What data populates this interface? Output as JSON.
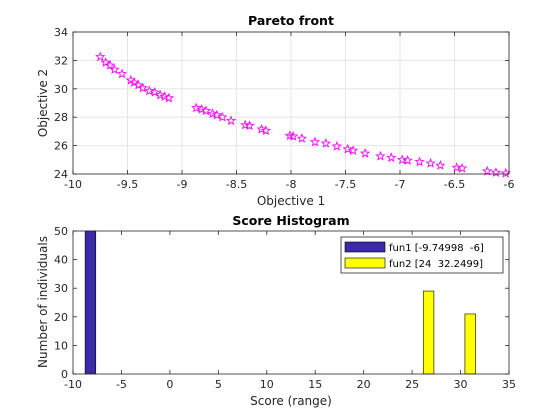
{
  "chart_data": [
    {
      "type": "scatter",
      "title": "Pareto front",
      "xlabel": "Objective 1",
      "ylabel": "Objective 2",
      "xlim": [
        -10,
        -6
      ],
      "ylim": [
        24,
        34
      ],
      "xticks": [
        "-10",
        "-9.5",
        "-9",
        "-8.5",
        "-8",
        "-7.5",
        "-7",
        "-6.5",
        "-6"
      ],
      "yticks": [
        "24",
        "26",
        "28",
        "30",
        "32",
        "34"
      ],
      "grid": true,
      "marker": "star",
      "color": "#ff00ff",
      "points": [
        [
          -9.75,
          32.25
        ],
        [
          -9.7,
          31.85
        ],
        [
          -9.66,
          31.65
        ],
        [
          -9.62,
          31.35
        ],
        [
          -9.55,
          31.05
        ],
        [
          -9.47,
          30.6
        ],
        [
          -9.44,
          30.45
        ],
        [
          -9.4,
          30.25
        ],
        [
          -9.36,
          30.05
        ],
        [
          -9.3,
          29.85
        ],
        [
          -9.25,
          29.75
        ],
        [
          -9.2,
          29.55
        ],
        [
          -9.16,
          29.45
        ],
        [
          -9.12,
          29.35
        ],
        [
          -8.87,
          28.65
        ],
        [
          -8.82,
          28.55
        ],
        [
          -8.78,
          28.45
        ],
        [
          -8.72,
          28.25
        ],
        [
          -8.68,
          28.15
        ],
        [
          -8.63,
          28.0
        ],
        [
          -8.55,
          27.75
        ],
        [
          -8.42,
          27.45
        ],
        [
          -8.38,
          27.4
        ],
        [
          -8.27,
          27.15
        ],
        [
          -8.23,
          27.05
        ],
        [
          -8.01,
          26.7
        ],
        [
          -7.98,
          26.65
        ],
        [
          -7.9,
          26.5
        ],
        [
          -7.78,
          26.25
        ],
        [
          -7.68,
          26.15
        ],
        [
          -7.58,
          25.95
        ],
        [
          -7.48,
          25.75
        ],
        [
          -7.43,
          25.65
        ],
        [
          -7.32,
          25.45
        ],
        [
          -7.18,
          25.25
        ],
        [
          -7.08,
          25.15
        ],
        [
          -6.98,
          25.0
        ],
        [
          -6.93,
          24.95
        ],
        [
          -6.82,
          24.85
        ],
        [
          -6.72,
          24.75
        ],
        [
          -6.63,
          24.6
        ],
        [
          -6.48,
          24.45
        ],
        [
          -6.43,
          24.4
        ],
        [
          -6.2,
          24.2
        ],
        [
          -6.12,
          24.1
        ],
        [
          -6.03,
          24.05
        ]
      ]
    },
    {
      "type": "bar",
      "title": "Score Histogram",
      "xlabel": "Score (range)",
      "ylabel": "Number of individuals",
      "xlim": [
        -10,
        35
      ],
      "ylim": [
        0,
        50
      ],
      "xticks": [
        "-10",
        "-5",
        "0",
        "5",
        "10",
        "15",
        "20",
        "25",
        "30",
        "35"
      ],
      "yticks": [
        "0",
        "10",
        "20",
        "30",
        "40",
        "50"
      ],
      "grid": false,
      "legend_position": "top-right",
      "series": [
        {
          "name": "fun1 [-9.74998  -6]",
          "color": "#3a2aa8",
          "bins": [
            {
              "x": -8.2,
              "value": 50
            }
          ]
        },
        {
          "name": "fun2 [24  32.2499]",
          "color": "#ffff00",
          "bins": [
            {
              "x": 26.7,
              "value": 29
            },
            {
              "x": 31.0,
              "value": 21
            }
          ]
        }
      ]
    }
  ]
}
